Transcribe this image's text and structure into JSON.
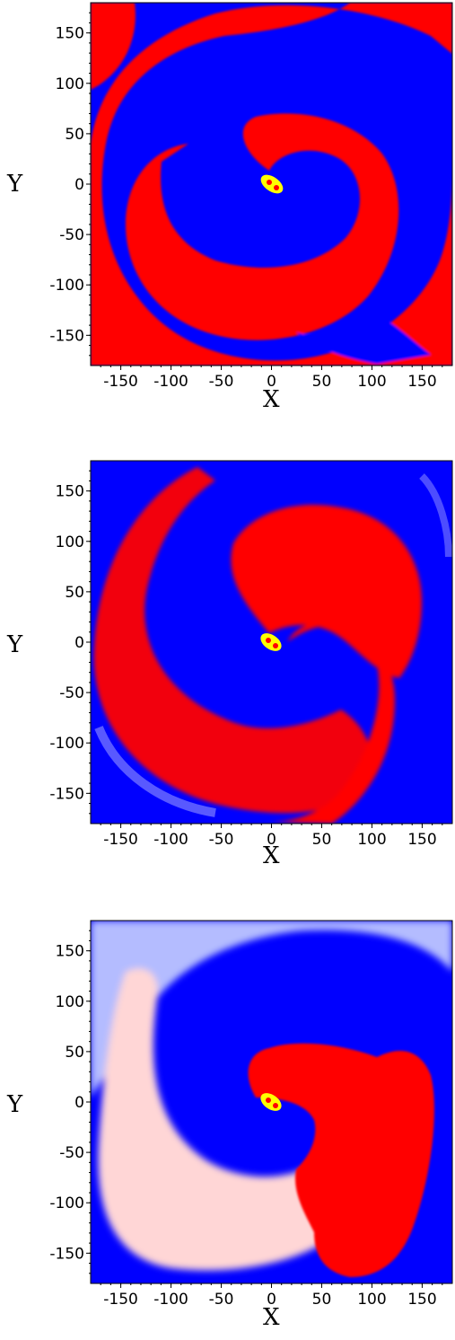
{
  "figure": {
    "colors": {
      "positive": "#ff0000",
      "negative": "#0000ff",
      "neutral": "#ffffff",
      "core": "#ffff00"
    }
  },
  "chart_data": [
    {
      "type": "heatmap",
      "title": "",
      "xlabel": "X",
      "ylabel": "Y",
      "xlim": [
        -180,
        180
      ],
      "ylim": [
        -180,
        180
      ],
      "xticks": [
        -150,
        -100,
        -50,
        0,
        50,
        100,
        150
      ],
      "yticks": [
        150,
        100,
        50,
        0,
        -50,
        -100,
        -150
      ],
      "x_tick_labels": [
        "-150",
        "-100",
        "-50",
        "0",
        "50",
        "100",
        "150"
      ],
      "y_tick_labels": [
        "150",
        "100",
        "50",
        "0",
        "-50",
        "-100",
        "-150"
      ],
      "pattern": "two-arm spiral, sharp contrast",
      "grid": false
    },
    {
      "type": "heatmap",
      "title": "",
      "xlabel": "X",
      "ylabel": "Y",
      "xlim": [
        -180,
        180
      ],
      "ylim": [
        -180,
        180
      ],
      "xticks": [
        -150,
        -100,
        -50,
        0,
        50,
        100,
        150
      ],
      "yticks": [
        150,
        100,
        50,
        0,
        -50,
        -100,
        -150
      ],
      "x_tick_labels": [
        "-150",
        "-100",
        "-50",
        "0",
        "50",
        "100",
        "150"
      ],
      "y_tick_labels": [
        "150",
        "100",
        "50",
        "0",
        "-50",
        "-100",
        "-150"
      ],
      "pattern": "two-arm spiral, smoothed",
      "grid": false
    },
    {
      "type": "heatmap",
      "title": "",
      "xlabel": "X",
      "ylabel": "Y",
      "xlim": [
        -180,
        180
      ],
      "ylim": [
        -180,
        180
      ],
      "xticks": [
        -150,
        -100,
        -50,
        0,
        50,
        100,
        150
      ],
      "yticks": [
        150,
        100,
        50,
        0,
        -50,
        -100,
        -150
      ],
      "x_tick_labels": [
        "-150",
        "-100",
        "-50",
        "0",
        "50",
        "100",
        "150"
      ],
      "y_tick_labels": [
        "150",
        "100",
        "50",
        "0",
        "-50",
        "-100",
        "-150"
      ],
      "pattern": "one-arm spiral, diffuse",
      "grid": false
    }
  ]
}
